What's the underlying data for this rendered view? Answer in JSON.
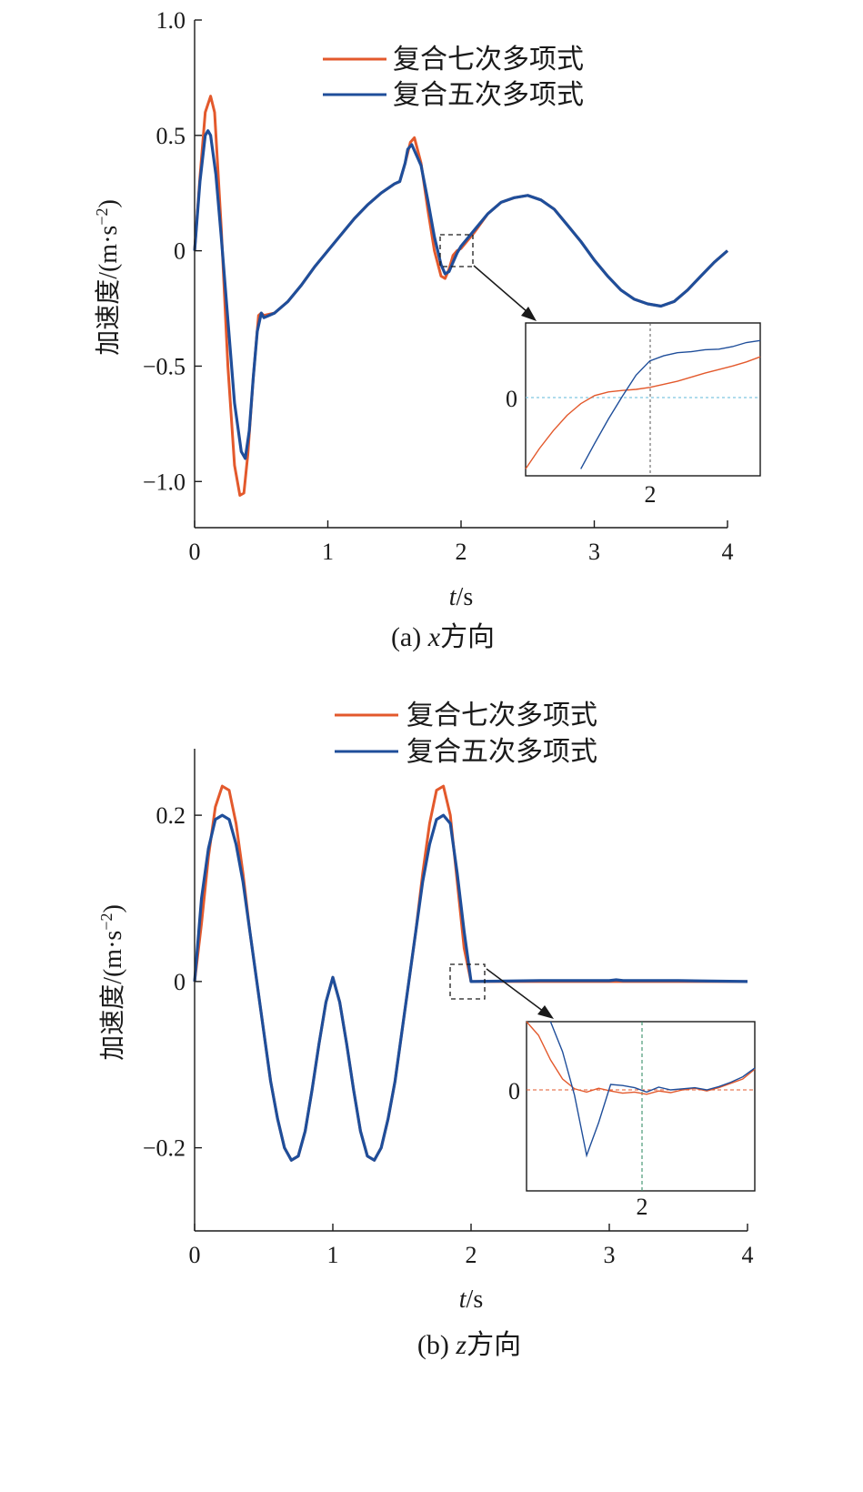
{
  "colors": {
    "orange": "#e3592c",
    "blue": "#1f4e9a",
    "axis": "#1a1a1a",
    "ref_cyan": "#7fc6e0",
    "ref_orange": "#e3592c",
    "ref_green": "#3a8f6a"
  },
  "chart_data": [
    {
      "type": "line",
      "caption_prefix": "(a) ",
      "caption_var": "x",
      "caption_suffix": "方向",
      "xlabel_var": "t",
      "xlabel_unit": "/s",
      "ylabel": "加速度/(m·s",
      "ylabel_exp": "−2",
      "ylabel_close": ")",
      "xlim": [
        0,
        4
      ],
      "ylim": [
        -1.2,
        1.0
      ],
      "xticks": [
        "0",
        "1",
        "2",
        "3",
        "4"
      ],
      "yticks": [
        "1.0",
        "0.5",
        "0",
        "−0.5",
        "−1.0"
      ],
      "ytick_values": [
        1.0,
        0.5,
        0,
        -0.5,
        -1.0
      ],
      "legend": [
        "复合七次多项式",
        "复合五次多项式"
      ],
      "legend_position": "top-right",
      "series": [
        {
          "name": "复合七次多项式",
          "x": [
            0,
            0.04,
            0.08,
            0.12,
            0.15,
            0.2,
            0.25,
            0.3,
            0.34,
            0.37,
            0.4,
            0.44,
            0.48,
            0.5,
            0.52,
            0.6,
            0.7,
            0.8,
            0.9,
            1.0,
            1.1,
            1.2,
            1.3,
            1.4,
            1.5,
            1.54,
            1.58,
            1.62,
            1.65,
            1.7,
            1.75,
            1.8,
            1.85,
            1.88,
            1.91,
            1.94,
            1.97,
            2.0,
            2.1,
            2.2,
            2.3,
            2.4,
            2.5,
            2.6,
            2.7,
            2.8,
            2.9,
            3.0,
            3.1,
            3.2,
            3.3,
            3.4,
            3.5,
            3.6,
            3.7,
            3.8,
            3.9,
            4.0
          ],
          "y": [
            0,
            0.32,
            0.6,
            0.67,
            0.6,
            0.1,
            -0.5,
            -0.93,
            -1.06,
            -1.05,
            -0.88,
            -0.55,
            -0.28,
            -0.27,
            -0.28,
            -0.27,
            -0.22,
            -0.15,
            -0.07,
            0.0,
            0.07,
            0.14,
            0.2,
            0.25,
            0.29,
            0.3,
            0.38,
            0.47,
            0.49,
            0.38,
            0.18,
            0.0,
            -0.11,
            -0.12,
            -0.08,
            -0.02,
            0.0,
            0.01,
            0.08,
            0.16,
            0.21,
            0.23,
            0.24,
            0.22,
            0.18,
            0.11,
            0.04,
            -0.04,
            -0.11,
            -0.17,
            -0.21,
            -0.23,
            -0.24,
            -0.22,
            -0.17,
            -0.11,
            -0.05,
            0.0
          ]
        },
        {
          "name": "复合五次多项式",
          "x": [
            0,
            0.04,
            0.08,
            0.1,
            0.12,
            0.16,
            0.2,
            0.25,
            0.3,
            0.35,
            0.38,
            0.41,
            0.44,
            0.47,
            0.5,
            0.52,
            0.6,
            0.7,
            0.8,
            0.9,
            1.0,
            1.1,
            1.2,
            1.3,
            1.4,
            1.5,
            1.54,
            1.58,
            1.6,
            1.63,
            1.7,
            1.75,
            1.8,
            1.85,
            1.88,
            1.91,
            1.94,
            1.97,
            2.0,
            2.1,
            2.2,
            2.3,
            2.4,
            2.5,
            2.6,
            2.7,
            2.8,
            2.9,
            3.0,
            3.1,
            3.2,
            3.3,
            3.4,
            3.5,
            3.6,
            3.7,
            3.8,
            3.9,
            4.0
          ],
          "y": [
            0,
            0.3,
            0.5,
            0.52,
            0.5,
            0.33,
            0.06,
            -0.3,
            -0.66,
            -0.87,
            -0.9,
            -0.78,
            -0.55,
            -0.35,
            -0.27,
            -0.29,
            -0.27,
            -0.22,
            -0.15,
            -0.07,
            0.0,
            0.07,
            0.14,
            0.2,
            0.25,
            0.29,
            0.3,
            0.38,
            0.44,
            0.46,
            0.37,
            0.22,
            0.06,
            -0.06,
            -0.1,
            -0.09,
            -0.05,
            -0.01,
            0.02,
            0.09,
            0.16,
            0.21,
            0.23,
            0.24,
            0.22,
            0.18,
            0.11,
            0.04,
            -0.04,
            -0.11,
            -0.17,
            -0.21,
            -0.23,
            -0.24,
            -0.22,
            -0.17,
            -0.11,
            -0.05,
            0.0
          ]
        }
      ],
      "inset": {
        "ytick": "0",
        "xtick": "2",
        "orange_y": [
          -0.14,
          -0.1,
          -0.065,
          -0.035,
          -0.012,
          0.004,
          0.011,
          0.014,
          0.016,
          0.02,
          0.026,
          0.032,
          0.04,
          0.048,
          0.055,
          0.062,
          0.07,
          0.08
        ],
        "blue_y": [
          null,
          null,
          null,
          null,
          -0.14,
          -0.09,
          -0.042,
          0.002,
          0.044,
          0.072,
          0.082,
          0.088,
          0.09,
          0.094,
          0.095,
          0.1,
          0.108,
          0.112
        ]
      }
    },
    {
      "type": "line",
      "caption_prefix": "(b) ",
      "caption_var": "z",
      "caption_suffix": "方向",
      "xlabel_var": "t",
      "xlabel_unit": "/s",
      "ylabel": "加速度/(m·s",
      "ylabel_exp": "−2",
      "ylabel_close": ")",
      "xlim": [
        0,
        4
      ],
      "ylim": [
        -0.3,
        0.28
      ],
      "xticks": [
        "0",
        "1",
        "2",
        "3",
        "4"
      ],
      "yticks": [
        "0.2",
        "0",
        "−0.2"
      ],
      "ytick_values": [
        0.2,
        0,
        -0.2
      ],
      "legend": [
        "复合七次多项式",
        "复合五次多项式"
      ],
      "legend_position": "top-right",
      "series": [
        {
          "name": "复合七次多项式",
          "x": [
            0,
            0.05,
            0.1,
            0.15,
            0.2,
            0.25,
            0.3,
            0.35,
            0.4,
            0.45,
            0.5,
            0.55,
            0.6,
            0.65,
            0.7,
            0.75,
            0.8,
            0.85,
            0.9,
            0.95,
            1.0,
            1.05,
            1.1,
            1.15,
            1.2,
            1.25,
            1.3,
            1.35,
            1.4,
            1.45,
            1.5,
            1.55,
            1.6,
            1.65,
            1.7,
            1.75,
            1.8,
            1.85,
            1.9,
            1.95,
            2.0,
            2.5,
            3.0,
            3.5,
            4.0
          ],
          "y": [
            0,
            0.07,
            0.15,
            0.21,
            0.235,
            0.23,
            0.19,
            0.13,
            0.06,
            0.0,
            -0.06,
            -0.12,
            -0.165,
            -0.2,
            -0.215,
            -0.21,
            -0.18,
            -0.13,
            -0.075,
            -0.025,
            0.005,
            -0.025,
            -0.075,
            -0.13,
            -0.18,
            -0.21,
            -0.215,
            -0.2,
            -0.165,
            -0.12,
            -0.06,
            0.0,
            0.06,
            0.13,
            0.19,
            0.23,
            0.235,
            0.2,
            0.12,
            0.04,
            0.0,
            0.0,
            0.0,
            0.0,
            0.0
          ]
        },
        {
          "name": "复合五次多项式",
          "x": [
            0,
            0.05,
            0.1,
            0.15,
            0.2,
            0.25,
            0.3,
            0.35,
            0.4,
            0.45,
            0.5,
            0.55,
            0.6,
            0.65,
            0.7,
            0.75,
            0.8,
            0.85,
            0.9,
            0.95,
            1.0,
            1.05,
            1.1,
            1.15,
            1.2,
            1.25,
            1.3,
            1.35,
            1.4,
            1.45,
            1.5,
            1.55,
            1.6,
            1.65,
            1.7,
            1.75,
            1.8,
            1.85,
            1.9,
            1.95,
            2.0,
            2.5,
            3.0,
            3.05,
            3.1,
            3.5,
            4.0
          ],
          "y": [
            0,
            0.1,
            0.16,
            0.195,
            0.2,
            0.195,
            0.165,
            0.12,
            0.06,
            0.0,
            -0.06,
            -0.12,
            -0.165,
            -0.2,
            -0.215,
            -0.21,
            -0.18,
            -0.13,
            -0.075,
            -0.025,
            0.005,
            -0.025,
            -0.075,
            -0.13,
            -0.18,
            -0.21,
            -0.215,
            -0.2,
            -0.165,
            -0.12,
            -0.06,
            0.0,
            0.06,
            0.12,
            0.165,
            0.195,
            0.2,
            0.19,
            0.13,
            0.06,
            0.0,
            0.001,
            0.001,
            0.002,
            0.001,
            0.001,
            0.0
          ]
        }
      ],
      "inset": {
        "ytick": "0",
        "xtick": "2",
        "orange_y": [
          0.15,
          0.1,
          0.055,
          0.02,
          0.002,
          -0.004,
          0.003,
          -0.002,
          -0.006,
          -0.004,
          -0.008,
          -0.002,
          -0.005,
          0.0,
          0.003,
          -0.002,
          0.004,
          0.012,
          0.02,
          0.038
        ],
        "blue_y": [
          null,
          null,
          0.15,
          0.07,
          -0.01,
          -0.12,
          -0.06,
          0.01,
          0.008,
          0.004,
          -0.004,
          0.005,
          0.0,
          0.002,
          0.004,
          0.0,
          0.006,
          0.014,
          0.024,
          0.04
        ]
      }
    }
  ]
}
